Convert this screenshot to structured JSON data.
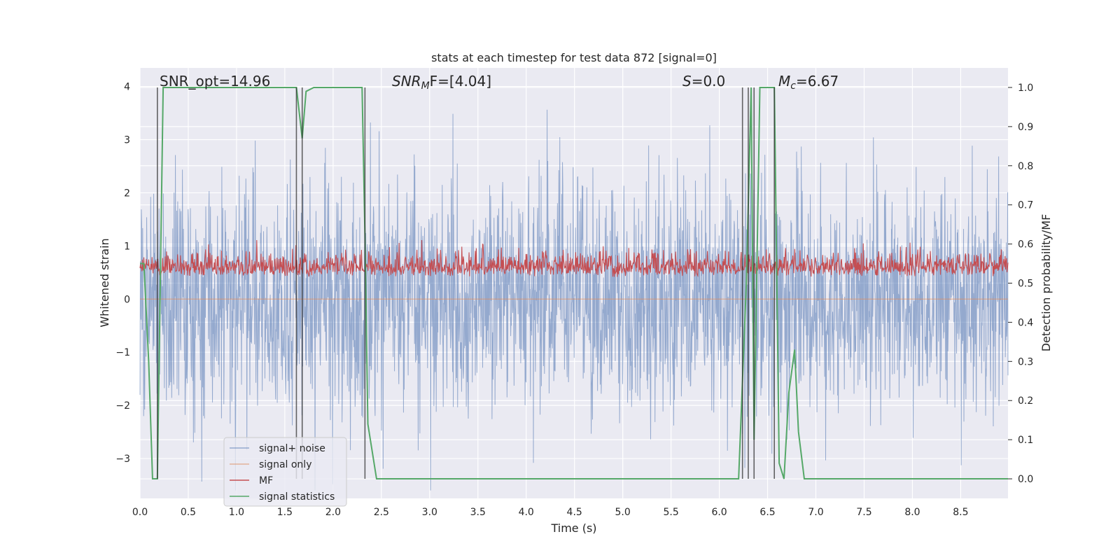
{
  "chart_data": {
    "type": "line",
    "title": "stats at each timestep for test data 872 [signal=0]",
    "xlabel": "Time (s)",
    "ylabel": "Whitened strain",
    "y2label": "Detection probability/MF",
    "xlim": [
      0,
      8.99
    ],
    "ylim": [
      -3.75,
      4.35
    ],
    "y2lim": [
      -0.05,
      1.05
    ],
    "xticks": [
      "0.0",
      "0.5",
      "1.0",
      "1.5",
      "2.0",
      "2.5",
      "3.0",
      "3.5",
      "4.0",
      "4.5",
      "5.0",
      "5.5",
      "6.0",
      "6.5",
      "7.0",
      "7.5",
      "8.0",
      "8.5"
    ],
    "xtick_values": [
      0,
      0.5,
      1,
      1.5,
      2,
      2.5,
      3,
      3.5,
      4,
      4.5,
      5,
      5.5,
      6,
      6.5,
      7,
      7.5,
      8,
      8.5
    ],
    "yticks": [
      "4",
      "3",
      "2",
      "1",
      "0",
      "−1",
      "−2",
      "−3"
    ],
    "ytick_values": [
      4,
      3,
      2,
      1,
      0,
      -1,
      -2,
      -3
    ],
    "y2ticks": [
      "1.0",
      "0.9",
      "0.8",
      "0.7",
      "0.6",
      "0.5",
      "0.4",
      "0.3",
      "0.2",
      "0.1",
      "0.0"
    ],
    "y2tick_values": [
      1.0,
      0.9,
      0.8,
      0.7,
      0.6,
      0.5,
      0.4,
      0.3,
      0.2,
      0.1,
      0.0
    ],
    "annotations": {
      "snr_opt": "SNR_opt=14.96",
      "snr_mf": "SNR",
      "snr_mf_sub": "M",
      "snr_mf_rest": "F=[4.04]",
      "s_value": "S",
      "s_value_rest": "=0.0",
      "mc": "M",
      "mc_sub": "c",
      "mc_rest": "=6.67"
    },
    "legend": {
      "position": "lower-left",
      "entries": [
        {
          "label": "signal+ noise",
          "color": "#4C72B0"
        },
        {
          "label": "signal only",
          "color": "#DD8452"
        },
        {
          "label": "MF",
          "color": "#C44E52"
        },
        {
          "label": "signal statistics",
          "color": "#55A868"
        }
      ]
    },
    "series": [
      {
        "name": "signal+ noise",
        "color": "#4C72B0",
        "note": "whitened strain noise, approx +/-1 sigma, extremes to +3.7 / -3.6"
      },
      {
        "name": "signal only",
        "values_const": 0.0,
        "color": "#DD8452"
      },
      {
        "name": "MF",
        "color": "#C44E52",
        "range_right_axis": [
          0.47,
          0.61
        ]
      },
      {
        "name": "signal statistics",
        "color": "#55A868",
        "x": [
          0.0,
          0.04,
          0.09,
          0.13,
          0.18,
          0.24,
          0.3,
          0.5,
          1.0,
          1.5,
          1.62,
          1.68,
          1.72,
          1.8,
          1.85,
          2.0,
          2.3,
          2.33,
          2.36,
          2.45,
          3.0,
          4.0,
          5.0,
          6.0,
          6.2,
          6.28,
          6.33,
          6.36,
          6.42,
          6.5,
          6.57,
          6.62,
          6.67,
          6.72,
          6.78,
          6.82,
          6.88,
          7.0,
          8.0,
          8.99
        ],
        "values": [
          0.55,
          0.55,
          0.3,
          0.0,
          0.0,
          1.0,
          1.0,
          1.0,
          1.0,
          1.0,
          1.0,
          0.87,
          0.99,
          1.0,
          1.0,
          1.0,
          1.0,
          0.62,
          0.14,
          0.0,
          0.0,
          0.0,
          0.0,
          0.0,
          0.0,
          0.5,
          1.0,
          0.1,
          1.0,
          1.0,
          1.0,
          0.04,
          0.0,
          0.22,
          0.33,
          0.12,
          0.0,
          0.0,
          0.0,
          0.0
        ]
      }
    ],
    "vlines_x": [
      0.18,
      1.62,
      1.68,
      2.33,
      6.24,
      6.3,
      6.36,
      6.57
    ]
  }
}
